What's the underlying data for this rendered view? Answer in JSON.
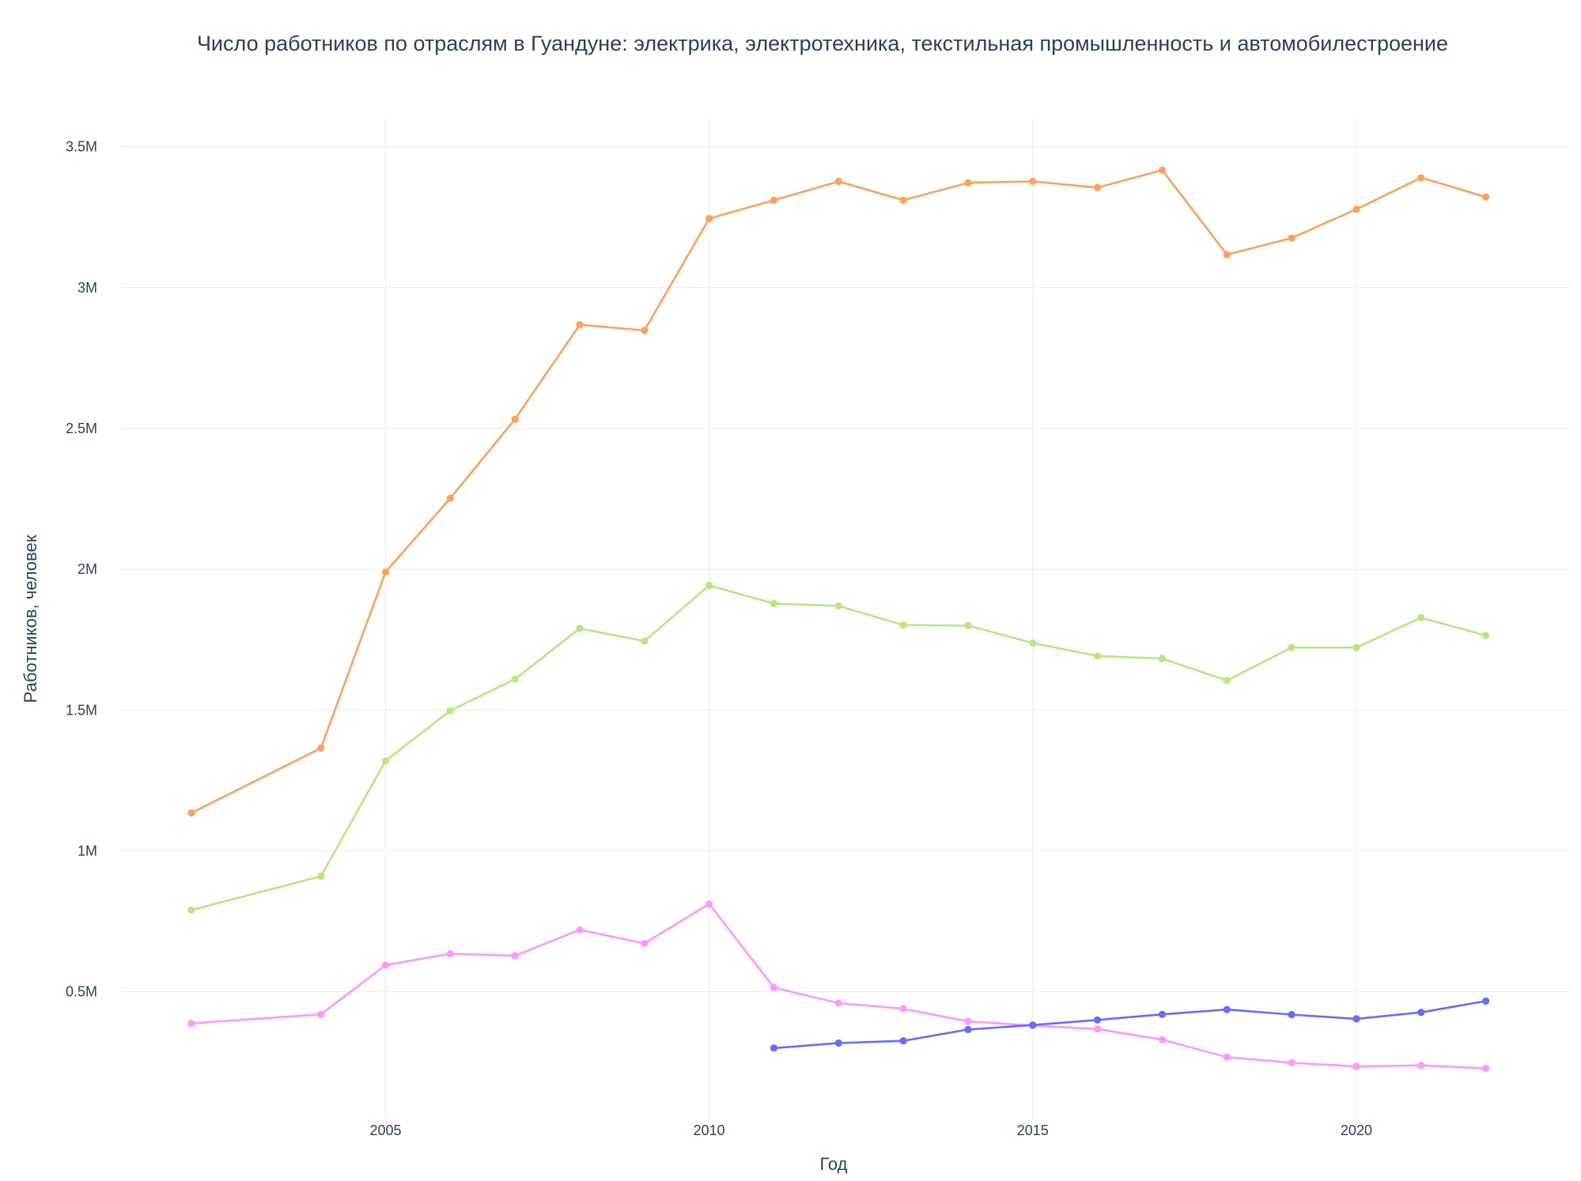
{
  "chart_data": {
    "type": "line",
    "title": "Число работников по отраслям в Гуандуне: электрика, электротехника, текстильная промышленность и автомобилестроение",
    "xlabel": "Год",
    "ylabel": "Работников, человек",
    "xlim": [
      2000.9,
      2023.3
    ],
    "ylim": [
      50000,
      3600000
    ],
    "x_ticks": [
      2005,
      2010,
      2015,
      2020
    ],
    "x_tick_labels": [
      "2005",
      "2010",
      "2015",
      "2020"
    ],
    "y_ticks": [
      500000,
      1000000,
      1500000,
      2000000,
      2500000,
      3000000,
      3500000
    ],
    "y_tick_labels": [
      "0.5M",
      "1M",
      "1.5M",
      "2M",
      "2.5M",
      "3M",
      "3.5M"
    ],
    "grid": true,
    "legend": "none",
    "series": [
      {
        "color": "#FFA15A",
        "x": [
          2002,
          2004,
          2005,
          2006,
          2007,
          2008,
          2009,
          2010,
          2011,
          2012,
          2013,
          2014,
          2015,
          2016,
          2017,
          2018,
          2019,
          2020,
          2021,
          2022
        ],
        "y": [
          1135000,
          1365000,
          1990000,
          2252000,
          2533000,
          2868000,
          2848000,
          3245000,
          3310000,
          3377000,
          3310000,
          3372000,
          3377000,
          3355000,
          3417000,
          3117000,
          3176000,
          3278000,
          3390000,
          3322000
        ]
      },
      {
        "color": "#B6E880",
        "x": [
          2002,
          2004,
          2005,
          2006,
          2007,
          2008,
          2009,
          2010,
          2011,
          2012,
          2013,
          2014,
          2015,
          2016,
          2017,
          2018,
          2019,
          2020,
          2021,
          2022
        ],
        "y": [
          790000,
          910000,
          1320000,
          1498000,
          1610000,
          1790000,
          1745000,
          1943000,
          1878000,
          1870000,
          1802000,
          1800000,
          1738000,
          1692000,
          1683000,
          1605000,
          1722000,
          1722000,
          1828000,
          1765000
        ]
      },
      {
        "color": "#FF97FF",
        "x": [
          2002,
          2004,
          2005,
          2006,
          2007,
          2008,
          2009,
          2010,
          2011,
          2012,
          2013,
          2014,
          2015,
          2016,
          2017,
          2018,
          2019,
          2020,
          2021,
          2022
        ],
        "y": [
          388000,
          420000,
          595000,
          635000,
          628000,
          720000,
          672000,
          812000,
          515000,
          460000,
          440000,
          395000,
          380000,
          368000,
          330000,
          268000,
          248000,
          235000,
          239000,
          228000
        ]
      },
      {
        "color": "#636EFA",
        "x": [
          2011,
          2012,
          2013,
          2014,
          2015,
          2016,
          2017,
          2018,
          2019,
          2020,
          2021,
          2022
        ],
        "y": [
          300000,
          318000,
          326000,
          366000,
          382000,
          400000,
          420000,
          437000,
          419000,
          404000,
          427000,
          467000
        ]
      }
    ]
  }
}
